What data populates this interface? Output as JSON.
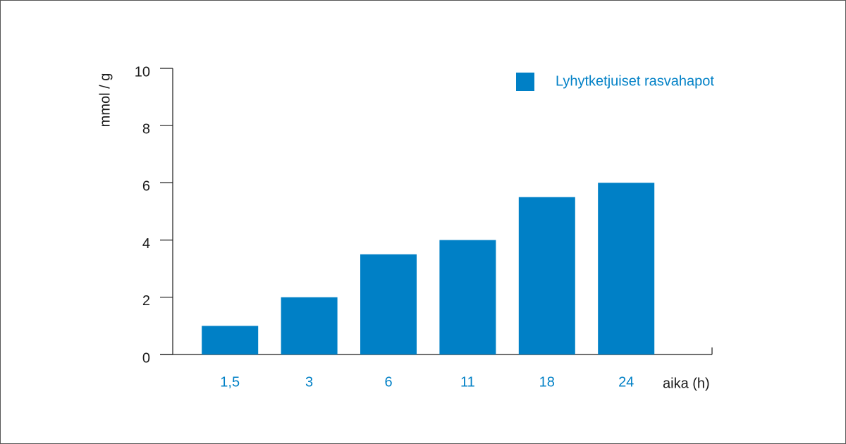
{
  "chart_data": {
    "type": "bar",
    "ylabel": "mmol / g",
    "xlabel": "aika (h)",
    "categories": [
      "1,5",
      "3",
      "6",
      "11",
      "18",
      "24"
    ],
    "series": [
      {
        "name": "Lyhytketjuiset rasvahapot",
        "color": "#0080c6",
        "values": [
          1,
          2,
          3.5,
          4,
          5.5,
          6
        ]
      }
    ],
    "ylim": [
      0,
      10
    ],
    "yticks": [
      0,
      2,
      4,
      6,
      8,
      10
    ]
  }
}
